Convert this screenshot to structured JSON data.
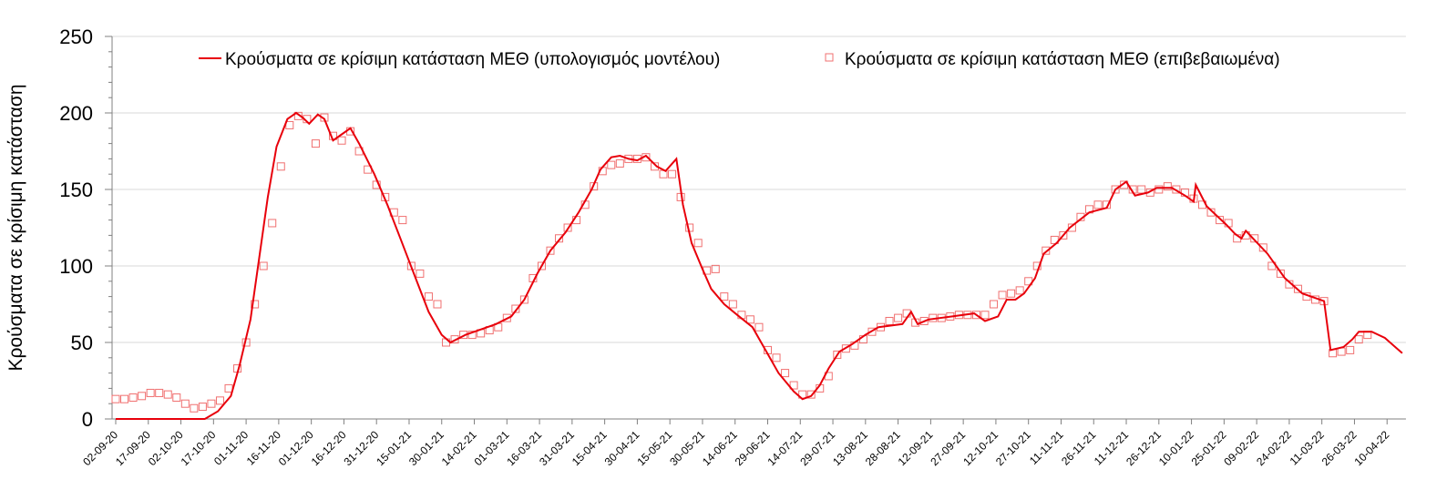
{
  "chart_data": {
    "type": "line",
    "title": "",
    "ylabel": "Κρούσματα σε κρίσιμη κατάσταση",
    "xlabel": "",
    "ylim": [
      0,
      250
    ],
    "yticks": [
      0,
      50,
      100,
      150,
      200,
      250
    ],
    "grid": true,
    "legend_position": "top",
    "x_unit": "days since 02-09-20",
    "xlim": [
      0,
      592
    ],
    "xtick_step_days": 15,
    "xtick_labels": [
      "02-09-20",
      "17-09-20",
      "02-10-20",
      "17-10-20",
      "01-11-20",
      "16-11-20",
      "01-12-20",
      "16-12-20",
      "31-12-20",
      "15-01-21",
      "30-01-21",
      "14-02-21",
      "01-03-21",
      "16-03-21",
      "31-03-21",
      "15-04-21",
      "30-04-21",
      "15-05-21",
      "30-05-21",
      "14-06-21",
      "29-06-21",
      "14-07-21",
      "29-07-21",
      "13-08-21",
      "28-08-21",
      "12-09-21",
      "27-09-21",
      "12-10-21",
      "27-10-21",
      "11-11-21",
      "26-11-21",
      "11-12-21",
      "26-12-21",
      "10-01-22",
      "25-01-22",
      "09-02-22",
      "24-02-22",
      "11-03-22",
      "26-03-22",
      "10-04-22"
    ],
    "series": [
      {
        "name": "Κρούσματα σε κρίσιμη κατάσταση ΜΕΘ (υπολογισμός μοντέλου)",
        "kind": "line",
        "color": "#e8000b",
        "points": [
          [
            0,
            0
          ],
          [
            41,
            0
          ],
          [
            47,
            5
          ],
          [
            53,
            15
          ],
          [
            57,
            35
          ],
          [
            62,
            65
          ],
          [
            66,
            105
          ],
          [
            70,
            145
          ],
          [
            74,
            178
          ],
          [
            79,
            196
          ],
          [
            83,
            200
          ],
          [
            86,
            197
          ],
          [
            89,
            193
          ],
          [
            93,
            199
          ],
          [
            96,
            196
          ],
          [
            100,
            182
          ],
          [
            104,
            186
          ],
          [
            108,
            190
          ],
          [
            112,
            180
          ],
          [
            119,
            160
          ],
          [
            125,
            140
          ],
          [
            131,
            118
          ],
          [
            138,
            92
          ],
          [
            144,
            70
          ],
          [
            150,
            55
          ],
          [
            154,
            50
          ],
          [
            161,
            55
          ],
          [
            167,
            58
          ],
          [
            175,
            62
          ],
          [
            182,
            67
          ],
          [
            188,
            78
          ],
          [
            194,
            95
          ],
          [
            200,
            110
          ],
          [
            207,
            122
          ],
          [
            213,
            135
          ],
          [
            219,
            150
          ],
          [
            223,
            163
          ],
          [
            228,
            171
          ],
          [
            232,
            172
          ],
          [
            236,
            170
          ],
          [
            240,
            169
          ],
          [
            244,
            172
          ],
          [
            249,
            165
          ],
          [
            253,
            162
          ],
          [
            258,
            170
          ],
          [
            261,
            140
          ],
          [
            265,
            115
          ],
          [
            270,
            98
          ],
          [
            274,
            85
          ],
          [
            280,
            75
          ],
          [
            286,
            68
          ],
          [
            293,
            60
          ],
          [
            299,
            45
          ],
          [
            305,
            30
          ],
          [
            312,
            18
          ],
          [
            316,
            13
          ],
          [
            320,
            15
          ],
          [
            324,
            22
          ],
          [
            328,
            33
          ],
          [
            333,
            44
          ],
          [
            339,
            49
          ],
          [
            345,
            55
          ],
          [
            351,
            60
          ],
          [
            362,
            62
          ],
          [
            366,
            70
          ],
          [
            369,
            62
          ],
          [
            374,
            65
          ],
          [
            385,
            67
          ],
          [
            395,
            69
          ],
          [
            400,
            64
          ],
          [
            406,
            67
          ],
          [
            410,
            78
          ],
          [
            414,
            78
          ],
          [
            418,
            82
          ],
          [
            423,
            92
          ],
          [
            427,
            108
          ],
          [
            433,
            115
          ],
          [
            439,
            125
          ],
          [
            448,
            135
          ],
          [
            456,
            138
          ],
          [
            460,
            150
          ],
          [
            465,
            155
          ],
          [
            469,
            146
          ],
          [
            475,
            148
          ],
          [
            479,
            151
          ],
          [
            486,
            151
          ],
          [
            492,
            146
          ],
          [
            496,
            142
          ],
          [
            497,
            153
          ],
          [
            502,
            139
          ],
          [
            511,
            127
          ],
          [
            515,
            121
          ],
          [
            518,
            118
          ],
          [
            520,
            123
          ],
          [
            530,
            108
          ],
          [
            538,
            92
          ],
          [
            546,
            82
          ],
          [
            556,
            77
          ],
          [
            559,
            45
          ],
          [
            565,
            47
          ],
          [
            569,
            52
          ],
          [
            572,
            57
          ],
          [
            578,
            57
          ],
          [
            584,
            53
          ],
          [
            592,
            43
          ]
        ]
      },
      {
        "name": "Κρούσματα σε κρίσιμη κατάσταση ΜΕΘ (επιβεβαιωμένα)",
        "kind": "scatter",
        "marker": "square",
        "color": "#f07070",
        "x_start": 0,
        "x_step": 4,
        "values": [
          13,
          13,
          14,
          15,
          17,
          17,
          16,
          14,
          10,
          7,
          8,
          10,
          12,
          20,
          33,
          50,
          75,
          100,
          128,
          165,
          192,
          198,
          196,
          180,
          197,
          185,
          182,
          188,
          175,
          163,
          153,
          145,
          135,
          130,
          100,
          95,
          80,
          75,
          50,
          52,
          55,
          55,
          56,
          58,
          60,
          66,
          72,
          78,
          92,
          100,
          110,
          118,
          125,
          130,
          140,
          152,
          162,
          166,
          167,
          170,
          170,
          171,
          165,
          160,
          160,
          145,
          125,
          115,
          97,
          98,
          80,
          75,
          68,
          65,
          60,
          45,
          40,
          30,
          22,
          16,
          16,
          20,
          28,
          42,
          46,
          48,
          52,
          57,
          60,
          64,
          66,
          69,
          63,
          64,
          66,
          66,
          67,
          68,
          68,
          68,
          68,
          75,
          81,
          82,
          84,
          90,
          100,
          110,
          117,
          120,
          125,
          132,
          137,
          140,
          140,
          150,
          153,
          150,
          150,
          148,
          150,
          152,
          150,
          148,
          144,
          140,
          135,
          130,
          128,
          118,
          120,
          118,
          112,
          100,
          95,
          88,
          85,
          80,
          78,
          77,
          43,
          44,
          45,
          52,
          55
        ]
      }
    ]
  }
}
